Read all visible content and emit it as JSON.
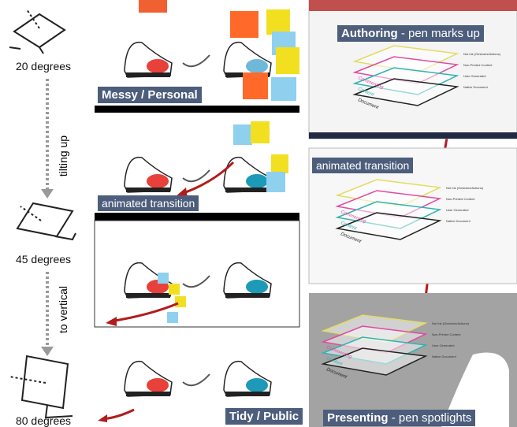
{
  "left_column": {
    "angles": [
      "20 degrees",
      "45 degrees",
      "80 degrees"
    ],
    "transitions": [
      "tilting up",
      "to vertical"
    ]
  },
  "middle_column": {
    "labels": [
      "Messy / Personal",
      "animated transition",
      "Tidy / Public"
    ]
  },
  "right_column": {
    "authoring_bold": "Authoring",
    "authoring_rest": "- pen marks up",
    "transition": "animated transition",
    "presenting_bold": "Presenting",
    "presenting_rest": "- pen spotlights",
    "layer_labels": [
      "Not Ink (Gestures/Actions)",
      "Non-Printed Content",
      "User Generated",
      "Native Document"
    ],
    "layer_names": [
      "Commenting",
      "Content",
      "Document"
    ]
  }
}
